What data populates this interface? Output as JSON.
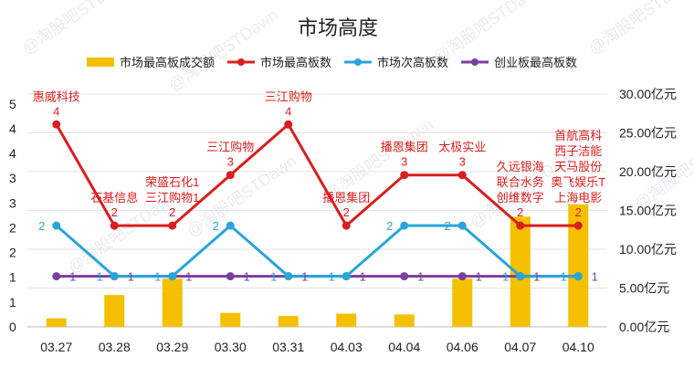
{
  "watermark": "@淘股吧STDawn",
  "chart_data": {
    "type": "bar+line",
    "title": "市场高度",
    "categories": [
      "03.27",
      "03.28",
      "03.29",
      "03.30",
      "03.31",
      "04.03",
      "04.04",
      "04.06",
      "04.07",
      "04.10"
    ],
    "left_axis": {
      "ticks": [
        "0",
        "1",
        "1",
        "2",
        "2",
        "3",
        "3",
        "4",
        "4",
        "5"
      ],
      "ylim": [
        0,
        4.6
      ]
    },
    "right_axis": {
      "ticks": [
        "0.00亿元",
        "5.00亿元",
        "10.00亿元",
        "15.00亿元",
        "20.00亿元",
        "25.00亿元",
        "30.00亿元"
      ],
      "ylim": [
        0,
        30
      ]
    },
    "legend_position": "top",
    "series": [
      {
        "name": "市场最高板成交额",
        "kind": "bar",
        "axis": "right",
        "color": "#f5c000",
        "values": [
          1.1,
          4.1,
          6.2,
          1.8,
          1.4,
          1.7,
          1.6,
          6.2,
          14.2,
          15.8
        ]
      },
      {
        "name": "市场最高板数",
        "kind": "line",
        "axis": "left",
        "color": "#d81e1e",
        "values": [
          4,
          2,
          2,
          3,
          4,
          2,
          3,
          3,
          2,
          2
        ],
        "labels": [
          "4",
          "2",
          "2",
          "3",
          "4",
          "2",
          "3",
          "3",
          "2",
          "2"
        ]
      },
      {
        "name": "市场次高板数",
        "kind": "line",
        "axis": "left",
        "color": "#2aa5d8",
        "values": [
          2,
          1,
          1,
          2,
          1,
          1,
          2,
          2,
          1,
          1
        ],
        "labels": [
          "2",
          "1",
          "1",
          "2",
          "1",
          "1",
          "2",
          "2",
          "1",
          "1"
        ]
      },
      {
        "name": "创业板最高板数",
        "kind": "line",
        "axis": "left",
        "color": "#7a3fa0",
        "values": [
          1,
          1,
          1,
          1,
          1,
          1,
          1,
          1,
          1,
          1
        ],
        "labels": [
          "1",
          "1",
          "1",
          "1",
          "1",
          "1",
          "1",
          "1",
          "1",
          "1"
        ]
      }
    ],
    "annotations": [
      [
        "惠威科技"
      ],
      [
        "石基信息"
      ],
      [
        "荣盛石化1",
        "三江购物1"
      ],
      [
        "三江购物"
      ],
      [
        "三江购物"
      ],
      [
        "播恩集团"
      ],
      [
        "播恩集团"
      ],
      [
        "太极实业"
      ],
      [
        "久远银海",
        "联合水务",
        "创维数字"
      ],
      [
        "首航高科",
        "西子洁能",
        "天马股份",
        "奥飞娱乐T",
        "上海电影"
      ]
    ]
  }
}
